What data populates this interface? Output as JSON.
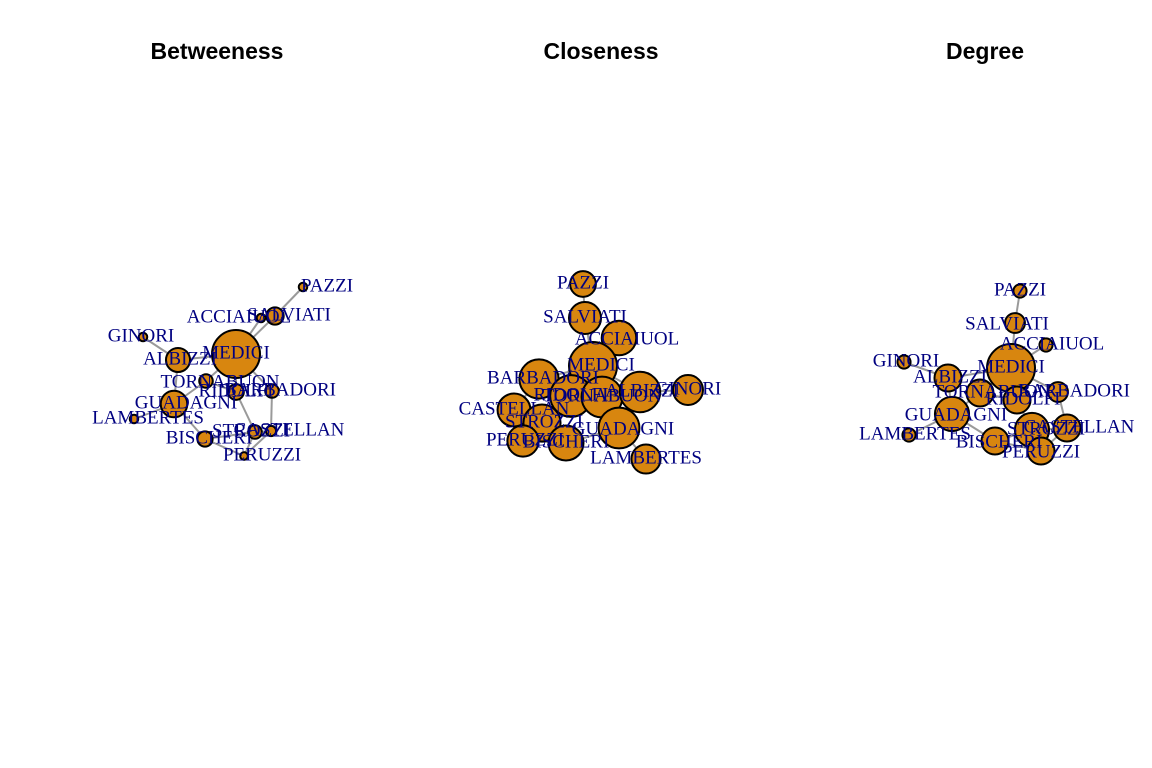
{
  "colors": {
    "node_fill": "#d8860f",
    "node_stroke": "#000000",
    "edge": "#9a9a9a",
    "label": "#000080"
  },
  "edges": [
    [
      "ACCIAIUOL",
      "MEDICI"
    ],
    [
      "ALBIZZI",
      "GINORI"
    ],
    [
      "ALBIZZI",
      "GUADAGNI"
    ],
    [
      "ALBIZZI",
      "MEDICI"
    ],
    [
      "BARBADORI",
      "CASTELLAN"
    ],
    [
      "BARBADORI",
      "MEDICI"
    ],
    [
      "BISCHERI",
      "GUADAGNI"
    ],
    [
      "BISCHERI",
      "PERUZZI"
    ],
    [
      "BISCHERI",
      "STROZZI"
    ],
    [
      "CASTELLAN",
      "PERUZZI"
    ],
    [
      "CASTELLAN",
      "STROZZI"
    ],
    [
      "GUADAGNI",
      "LAMBERTES"
    ],
    [
      "GUADAGNI",
      "TORNABUON"
    ],
    [
      "MEDICI",
      "RIDOLFI"
    ],
    [
      "MEDICI",
      "SALVIATI"
    ],
    [
      "MEDICI",
      "TORNABUON"
    ],
    [
      "PAZZI",
      "SALVIATI"
    ],
    [
      "PERUZZI",
      "STROZZI"
    ],
    [
      "RIDOLFI",
      "STROZZI"
    ],
    [
      "RIDOLFI",
      "TORNABUON"
    ]
  ],
  "panels": [
    {
      "title": "Betweeness",
      "nodes": [
        {
          "id": "PAZZI",
          "label": "PAZZI",
          "size": 0.06
        },
        {
          "id": "SALVIATI",
          "label": "SALVIATI",
          "size": 0.27
        },
        {
          "id": "ACCIAIUOL",
          "label": "ACCIAIUOL",
          "size": 0.06
        },
        {
          "id": "MEDICI",
          "label": "MEDICI",
          "size": 1.0
        },
        {
          "id": "GINORI",
          "label": "GINORI",
          "size": 0.06
        },
        {
          "id": "ALBIZZI",
          "label": "ALBIZZI",
          "size": 0.43
        },
        {
          "id": "TORNABUON",
          "label": "TORNABUON",
          "size": 0.18
        },
        {
          "id": "RIDOLFI",
          "label": "RIDOLFI",
          "size": 0.23
        },
        {
          "id": "BARBADORI",
          "label": "BARBADORI",
          "size": 0.18
        },
        {
          "id": "GUADAGNI",
          "label": "GUADAGNI",
          "size": 0.49
        },
        {
          "id": "LAMBERTES",
          "label": "LAMBERTES",
          "size": 0.06
        },
        {
          "id": "STROZZI",
          "label": "STROZZI",
          "size": 0.18
        },
        {
          "id": "CASTELLAN",
          "label": "CASTELLAN",
          "size": 0.1
        },
        {
          "id": "BISCHERI",
          "label": "BISCHERI",
          "size": 0.22
        },
        {
          "id": "PERUZZI",
          "label": "PERUZZI",
          "size": 0.04
        }
      ]
    },
    {
      "title": "Closeness",
      "nodes": [
        {
          "id": "PAZZI",
          "label": "PAZZI",
          "size": 0.47
        },
        {
          "id": "SALVIATI",
          "label": "SALVIATI",
          "size": 0.62
        },
        {
          "id": "ACCIAIUOL",
          "label": "ACCIAIUOL",
          "size": 0.68
        },
        {
          "id": "MEDICI",
          "label": "MEDICI",
          "size": 1.0
        },
        {
          "id": "BARBADORI",
          "label": "BARBADORI",
          "size": 0.79
        },
        {
          "id": "RIDOLFI",
          "label": "RIDOLFI",
          "size": 0.85
        },
        {
          "id": "TORNABUON",
          "label": "TORNABUON",
          "size": 0.83
        },
        {
          "id": "ALBIZZI",
          "label": "ALBIZZI",
          "size": 0.82
        },
        {
          "id": "GINORI",
          "label": "GINORI",
          "size": 0.57
        },
        {
          "id": "CASTELLAN",
          "label": "CASTELLAN",
          "size": 0.64
        },
        {
          "id": "STROZZI",
          "label": "STROZZI",
          "size": 0.74
        },
        {
          "id": "GUADAGNI",
          "label": "GUADAGNI",
          "size": 0.83
        },
        {
          "id": "PERUZZI",
          "label": "PERUZZI",
          "size": 0.6
        },
        {
          "id": "BISCHERI",
          "label": "BISCHERI",
          "size": 0.69
        },
        {
          "id": "LAMBERTES",
          "label": "LAMBERTES",
          "size": 0.55
        }
      ]
    },
    {
      "title": "Degree",
      "nodes": [
        {
          "id": "PAZZI",
          "label": "PAZZI",
          "size": 0.17
        },
        {
          "id": "SALVIATI",
          "label": "SALVIATI",
          "size": 0.33
        },
        {
          "id": "ACCIAIUOL",
          "label": "ACCIAIUOL",
          "size": 0.17
        },
        {
          "id": "MEDICI",
          "label": "MEDICI",
          "size": 1.0
        },
        {
          "id": "GINORI",
          "label": "GINORI",
          "size": 0.17
        },
        {
          "id": "ALBIZZI",
          "label": "ALBIZZI",
          "size": 0.5
        },
        {
          "id": "TORNABUON",
          "label": "TORNABUON",
          "size": 0.5
        },
        {
          "id": "RIDOLFI",
          "label": "RIDOLFI",
          "size": 0.5
        },
        {
          "id": "BARBADORI",
          "label": "BARBADORI",
          "size": 0.33
        },
        {
          "id": "GUADAGNI",
          "label": "GUADAGNI",
          "size": 0.67
        },
        {
          "id": "LAMBERTES",
          "label": "LAMBERTES",
          "size": 0.17
        },
        {
          "id": "STROZZI",
          "label": "STROZZI",
          "size": 0.67
        },
        {
          "id": "CASTELLAN",
          "label": "CASTELLAN",
          "size": 0.5
        },
        {
          "id": "BISCHERI",
          "label": "BISCHERI",
          "size": 0.5
        },
        {
          "id": "PERUZZI",
          "label": "PERUZZI",
          "size": 0.5
        }
      ]
    }
  ]
}
